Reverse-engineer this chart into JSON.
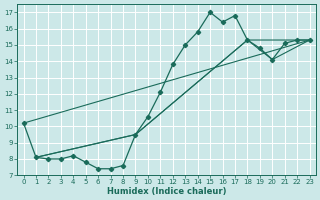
{
  "xlabel": "Humidex (Indice chaleur)",
  "bg_color": "#cce8e8",
  "grid_color": "#ffffff",
  "line_color": "#1a6b5a",
  "xlim": [
    -0.5,
    23.5
  ],
  "ylim": [
    7,
    17.5
  ],
  "yticks": [
    7,
    8,
    9,
    10,
    11,
    12,
    13,
    14,
    15,
    16,
    17
  ],
  "xticks": [
    0,
    1,
    2,
    3,
    4,
    5,
    6,
    7,
    8,
    9,
    10,
    11,
    12,
    13,
    14,
    15,
    16,
    17,
    18,
    19,
    20,
    21,
    22,
    23
  ],
  "series_main": {
    "x": [
      0,
      1,
      2,
      3,
      4,
      5,
      6,
      7,
      8,
      9,
      10,
      11,
      12,
      13,
      14,
      15,
      16,
      17,
      18,
      19,
      20,
      21,
      22,
      23
    ],
    "y": [
      10.2,
      8.1,
      8.0,
      8.0,
      8.2,
      7.8,
      7.4,
      7.4,
      7.6,
      9.5,
      10.6,
      12.1,
      13.8,
      15.0,
      15.8,
      17.0,
      16.4,
      16.8,
      15.3,
      14.8,
      14.1,
      15.1,
      15.3,
      15.3
    ]
  },
  "series_lines": [
    {
      "x": [
        0,
        23
      ],
      "y": [
        10.2,
        15.3
      ]
    },
    {
      "x": [
        1,
        9,
        18,
        23
      ],
      "y": [
        8.1,
        9.5,
        15.3,
        15.3
      ]
    },
    {
      "x": [
        1,
        9,
        18,
        20,
        23
      ],
      "y": [
        8.1,
        9.5,
        15.3,
        14.1,
        15.3
      ]
    }
  ]
}
